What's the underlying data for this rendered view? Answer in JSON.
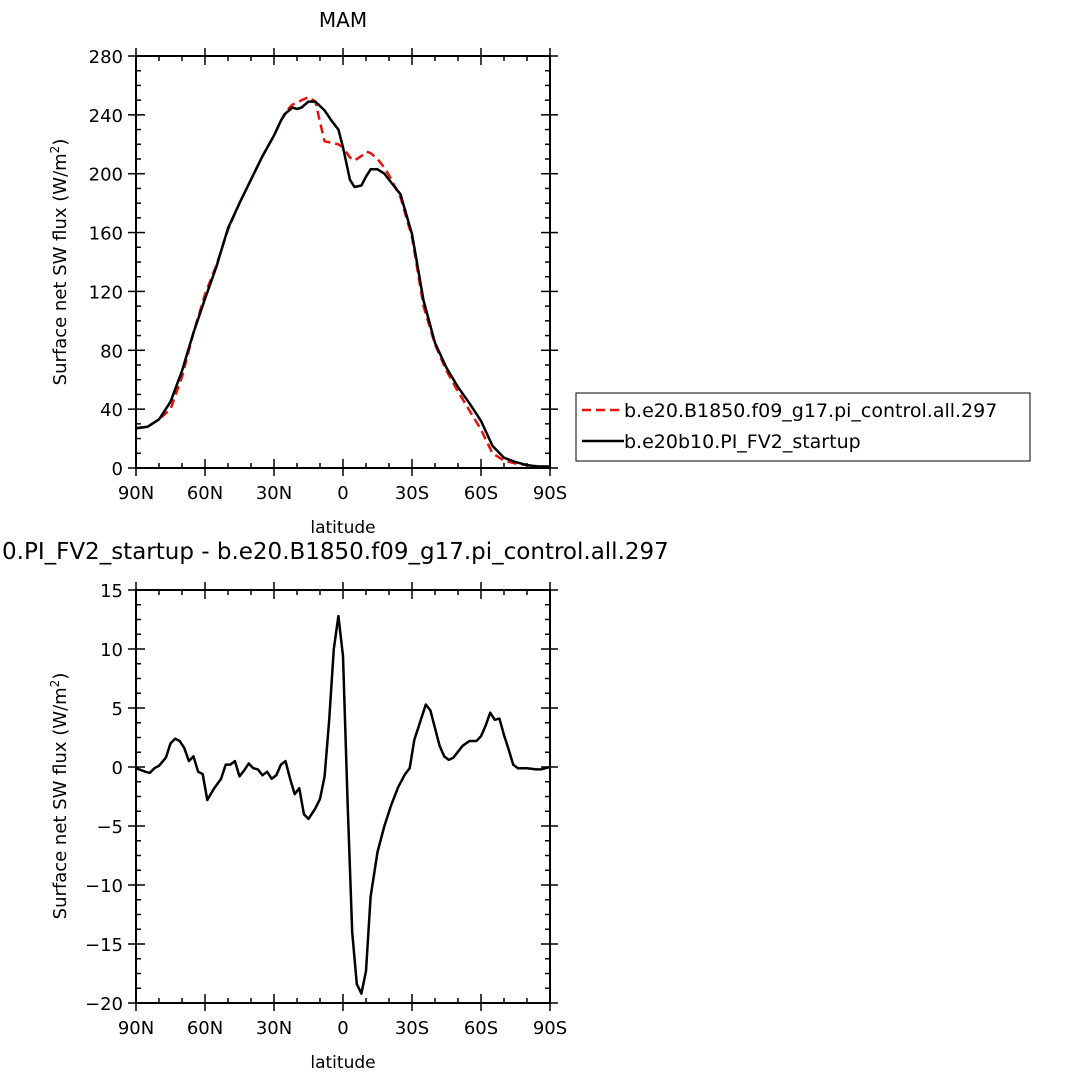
{
  "chart_data": [
    {
      "type": "line",
      "title": "MAM",
      "xlabel": "latitude",
      "ylabel_main": "Surface net SW flux (W/m",
      "ylabel_sup": "2",
      "ylabel_close": ")",
      "xlim": [
        90,
        -90
      ],
      "ylim": [
        0,
        280
      ],
      "grid": false,
      "xticks": [
        90,
        60,
        30,
        0,
        -30,
        -60,
        -90
      ],
      "xtick_labels": [
        "90N",
        "60N",
        "30N",
        "0",
        "30S",
        "60S",
        "90S"
      ],
      "yticks": [
        0,
        40,
        80,
        120,
        160,
        200,
        240,
        280
      ],
      "ytick_labels": [
        "0",
        "40",
        "80",
        "120",
        "160",
        "200",
        "240",
        "280"
      ],
      "legend_position": "right, outside plot",
      "series": [
        {
          "name": "b.e20.B1850.f09_g17.pi_control.all.297",
          "color": "#e8120c",
          "dash": true,
          "x": [
            90,
            85,
            80,
            75,
            70,
            65,
            60,
            55,
            50,
            45,
            40,
            35,
            30,
            27,
            25,
            22,
            20,
            18,
            15,
            12,
            10,
            8,
            5,
            2,
            0,
            -3,
            -5,
            -8,
            -10,
            -12,
            -15,
            -18,
            -20,
            -25,
            -30,
            -35,
            -40,
            -45,
            -50,
            -55,
            -60,
            -65,
            -70,
            -75,
            -80,
            -85,
            -90
          ],
          "y": [
            27,
            28,
            33,
            40,
            62,
            92,
            118,
            138,
            162,
            180,
            196,
            212,
            226,
            236,
            242,
            247,
            248,
            250,
            252,
            249,
            235,
            222,
            221,
            220,
            218,
            211,
            209,
            212,
            215,
            214,
            210,
            204,
            199,
            184,
            157,
            110,
            84,
            66,
            52,
            39,
            26,
            10,
            5,
            3,
            2,
            1,
            1
          ]
        },
        {
          "name": "b.e20b10.PI_FV2_startup",
          "color": "#000000",
          "dash": false,
          "x": [
            90,
            85,
            80,
            75,
            70,
            65,
            60,
            55,
            50,
            45,
            40,
            35,
            30,
            27,
            25,
            22,
            20,
            18,
            15,
            12,
            10,
            8,
            5,
            2,
            0,
            -3,
            -5,
            -8,
            -10,
            -12,
            -15,
            -18,
            -20,
            -25,
            -30,
            -35,
            -40,
            -45,
            -50,
            -55,
            -60,
            -65,
            -70,
            -75,
            -80,
            -85,
            -90
          ],
          "y": [
            27,
            28,
            33,
            45,
            66,
            92,
            115,
            137,
            163,
            180,
            196,
            212,
            226,
            236,
            241,
            245,
            244,
            245,
            249,
            249,
            246,
            243,
            236,
            230,
            218,
            196,
            191,
            192,
            198,
            203,
            203,
            200,
            196,
            186,
            159,
            114,
            85,
            68,
            55,
            44,
            32,
            15,
            7,
            4,
            2,
            1,
            1
          ]
        }
      ]
    },
    {
      "type": "line",
      "title": "0.PI_FV2_startup - b.e20.B1850.f09_g17.pi_control.all.297",
      "xlabel": "latitude",
      "ylabel_main": "Surface net SW flux (W/m",
      "ylabel_sup": "2",
      "ylabel_close": ")",
      "xlim": [
        90,
        -90
      ],
      "ylim": [
        -20,
        15
      ],
      "grid": false,
      "xticks": [
        90,
        60,
        30,
        0,
        -30,
        -60,
        -90
      ],
      "xtick_labels": [
        "90N",
        "60N",
        "30N",
        "0",
        "30S",
        "60S",
        "90S"
      ],
      "yticks": [
        -20,
        -15,
        -10,
        -5,
        0,
        5,
        10,
        15
      ],
      "ytick_labels": [
        "−20",
        "−15",
        "−10",
        "−5",
        "0",
        "5",
        "10",
        "15"
      ],
      "series": [
        {
          "color": "#000000",
          "dash": false,
          "x": [
            90,
            86,
            84,
            82,
            80,
            77,
            75,
            73,
            71,
            69,
            67,
            65,
            63,
            61,
            59,
            56,
            53,
            51,
            49,
            47,
            45,
            43,
            41,
            39,
            37,
            35,
            33,
            31,
            29,
            27,
            25,
            23,
            21,
            19,
            17,
            15,
            12,
            10,
            8,
            6,
            4,
            2,
            0,
            -2,
            -4,
            -6,
            -8,
            -10,
            -12,
            -15,
            -18,
            -21,
            -24,
            -27,
            -29,
            -31,
            -33,
            -36,
            -38,
            -40,
            -42,
            -44,
            -46,
            -48,
            -50,
            -52,
            -55,
            -58,
            -60,
            -62,
            -64,
            -66,
            -68,
            -70,
            -72,
            -74,
            -76,
            -78,
            -80,
            -84,
            -86,
            -88,
            -90
          ],
          "y": [
            -0.1,
            -0.4,
            -0.5,
            -0.1,
            0.1,
            0.8,
            2.0,
            2.4,
            2.2,
            1.6,
            0.5,
            0.9,
            -0.4,
            -0.6,
            -2.8,
            -1.8,
            -1.0,
            0.2,
            0.2,
            0.5,
            -0.8,
            -0.3,
            0.3,
            -0.1,
            -0.2,
            -0.7,
            -0.4,
            -1.0,
            -0.7,
            0.2,
            0.5,
            -1.0,
            -2.3,
            -1.8,
            -4.0,
            -4.4,
            -3.5,
            -2.7,
            -0.8,
            4.0,
            10.0,
            12.8,
            9.4,
            -3.0,
            -14.0,
            -18.4,
            -19.2,
            -17.3,
            -11.0,
            -7.2,
            -5.0,
            -3.2,
            -1.7,
            -0.6,
            -0.1,
            2.3,
            3.5,
            5.3,
            4.8,
            3.3,
            1.8,
            0.9,
            0.6,
            0.8,
            1.3,
            1.8,
            2.2,
            2.2,
            2.6,
            3.5,
            4.6,
            4.0,
            4.1,
            2.7,
            1.5,
            0.2,
            -0.1,
            -0.1,
            -0.1,
            -0.2,
            -0.2,
            -0.1,
            0.0
          ]
        }
      ]
    }
  ]
}
